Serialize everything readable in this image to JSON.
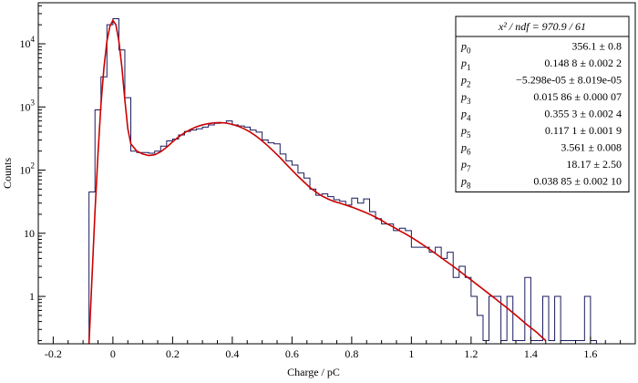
{
  "chart_data": {
    "type": "histogram-with-fit",
    "title": "",
    "xlabel": "Charge / pC",
    "ylabel": "Counts",
    "x_range": [
      -0.25,
      1.75
    ],
    "y_range_log10": [
      -0.75,
      4.65
    ],
    "y_scale": "log",
    "x_ticks": [
      {
        "v": -0.2,
        "label": "-0.2"
      },
      {
        "v": 0,
        "label": "0"
      },
      {
        "v": 0.2,
        "label": "0.2"
      },
      {
        "v": 0.4,
        "label": "0.4"
      },
      {
        "v": 0.6,
        "label": "0.6"
      },
      {
        "v": 0.8,
        "label": "0.8"
      },
      {
        "v": 1.0,
        "label": "1"
      },
      {
        "v": 1.2,
        "label": "1.2"
      },
      {
        "v": 1.4,
        "label": "1.4"
      },
      {
        "v": 1.6,
        "label": "1.6"
      }
    ],
    "y_ticks": [
      {
        "exp": 0,
        "base": "1",
        "sup": ""
      },
      {
        "exp": 1,
        "base": "10",
        "sup": ""
      },
      {
        "exp": 2,
        "base": "10",
        "sup": "2"
      },
      {
        "exp": 3,
        "base": "10",
        "sup": "3"
      },
      {
        "exp": 4,
        "base": "10",
        "sup": "4"
      }
    ],
    "histogram": {
      "color": "#1a1a5e",
      "bins": [
        [
          -0.08,
          -0.06,
          45
        ],
        [
          -0.06,
          -0.04,
          900
        ],
        [
          -0.04,
          -0.02,
          3000
        ],
        [
          -0.02,
          0.0,
          20000
        ],
        [
          0.0,
          0.02,
          25000
        ],
        [
          0.02,
          0.04,
          8000
        ],
        [
          0.04,
          0.06,
          1400
        ],
        [
          0.06,
          0.08,
          200
        ],
        [
          0.08,
          0.1,
          190
        ],
        [
          0.1,
          0.12,
          190
        ],
        [
          0.12,
          0.14,
          185
        ],
        [
          0.14,
          0.16,
          200
        ],
        [
          0.16,
          0.18,
          240
        ],
        [
          0.18,
          0.2,
          290
        ],
        [
          0.2,
          0.22,
          310
        ],
        [
          0.22,
          0.24,
          360
        ],
        [
          0.24,
          0.26,
          410
        ],
        [
          0.26,
          0.28,
          430
        ],
        [
          0.28,
          0.3,
          450
        ],
        [
          0.3,
          0.32,
          480
        ],
        [
          0.32,
          0.34,
          520
        ],
        [
          0.34,
          0.36,
          550
        ],
        [
          0.36,
          0.38,
          560
        ],
        [
          0.38,
          0.4,
          600
        ],
        [
          0.4,
          0.42,
          520
        ],
        [
          0.42,
          0.44,
          500
        ],
        [
          0.44,
          0.46,
          480
        ],
        [
          0.46,
          0.48,
          430
        ],
        [
          0.48,
          0.5,
          400
        ],
        [
          0.5,
          0.52,
          300
        ],
        [
          0.52,
          0.54,
          270
        ],
        [
          0.54,
          0.56,
          260
        ],
        [
          0.56,
          0.58,
          180
        ],
        [
          0.58,
          0.6,
          140
        ],
        [
          0.6,
          0.62,
          120
        ],
        [
          0.62,
          0.64,
          90
        ],
        [
          0.64,
          0.66,
          75
        ],
        [
          0.66,
          0.68,
          50
        ],
        [
          0.68,
          0.7,
          40
        ],
        [
          0.7,
          0.72,
          42
        ],
        [
          0.72,
          0.74,
          38
        ],
        [
          0.74,
          0.76,
          34
        ],
        [
          0.76,
          0.78,
          32
        ],
        [
          0.78,
          0.8,
          28
        ],
        [
          0.8,
          0.82,
          36
        ],
        [
          0.82,
          0.84,
          30
        ],
        [
          0.84,
          0.86,
          35
        ],
        [
          0.86,
          0.88,
          22
        ],
        [
          0.88,
          0.9,
          17
        ],
        [
          0.9,
          0.92,
          14
        ],
        [
          0.92,
          0.94,
          14
        ],
        [
          0.94,
          0.96,
          11
        ],
        [
          0.96,
          0.98,
          12
        ],
        [
          0.98,
          1.0,
          11
        ],
        [
          1.0,
          1.02,
          6
        ],
        [
          1.02,
          1.04,
          6
        ],
        [
          1.04,
          1.06,
          6
        ],
        [
          1.06,
          1.08,
          5
        ],
        [
          1.08,
          1.1,
          6
        ],
        [
          1.1,
          1.12,
          4
        ],
        [
          1.12,
          1.14,
          5
        ],
        [
          1.14,
          1.16,
          2
        ],
        [
          1.16,
          1.18,
          3
        ],
        [
          1.18,
          1.2,
          2
        ],
        [
          1.2,
          1.22,
          1
        ],
        [
          1.22,
          1.24,
          0.5
        ],
        [
          1.24,
          1.26,
          0.2
        ],
        [
          1.26,
          1.28,
          1
        ],
        [
          1.28,
          1.3,
          1
        ],
        [
          1.3,
          1.32,
          0.2
        ],
        [
          1.32,
          1.34,
          1
        ],
        [
          1.34,
          1.36,
          0.2
        ],
        [
          1.36,
          1.38,
          0.2
        ],
        [
          1.38,
          1.4,
          2
        ],
        [
          1.4,
          1.42,
          0.2
        ],
        [
          1.42,
          1.44,
          0.2
        ],
        [
          1.44,
          1.46,
          1
        ],
        [
          1.46,
          1.48,
          0.2
        ],
        [
          1.48,
          1.5,
          1
        ],
        [
          1.5,
          1.52,
          0.2
        ],
        [
          1.52,
          1.54,
          0.2
        ],
        [
          1.54,
          1.56,
          0.2
        ],
        [
          1.56,
          1.58,
          0.2
        ],
        [
          1.58,
          1.6,
          1
        ],
        [
          1.6,
          1.62,
          0.2
        ]
      ]
    },
    "fit": {
      "color": "#cc0000",
      "points": [
        [
          -0.08,
          0.18
        ],
        [
          -0.07,
          2
        ],
        [
          -0.06,
          22
        ],
        [
          -0.05,
          180
        ],
        [
          -0.04,
          1100
        ],
        [
          -0.03,
          4200
        ],
        [
          -0.02,
          11000
        ],
        [
          -0.01,
          19000
        ],
        [
          0.0,
          23500
        ],
        [
          0.01,
          20000
        ],
        [
          0.02,
          11000
        ],
        [
          0.03,
          4300
        ],
        [
          0.04,
          1300
        ],
        [
          0.05,
          450
        ],
        [
          0.06,
          260
        ],
        [
          0.08,
          200
        ],
        [
          0.1,
          180
        ],
        [
          0.12,
          170
        ],
        [
          0.14,
          175
        ],
        [
          0.16,
          195
        ],
        [
          0.18,
          230
        ],
        [
          0.2,
          280
        ],
        [
          0.22,
          335
        ],
        [
          0.24,
          390
        ],
        [
          0.26,
          440
        ],
        [
          0.28,
          485
        ],
        [
          0.3,
          520
        ],
        [
          0.32,
          545
        ],
        [
          0.34,
          560
        ],
        [
          0.36,
          565
        ],
        [
          0.38,
          555
        ],
        [
          0.4,
          530
        ],
        [
          0.42,
          495
        ],
        [
          0.44,
          450
        ],
        [
          0.46,
          400
        ],
        [
          0.48,
          345
        ],
        [
          0.5,
          290
        ],
        [
          0.52,
          240
        ],
        [
          0.54,
          195
        ],
        [
          0.56,
          158
        ],
        [
          0.58,
          125
        ],
        [
          0.6,
          100
        ],
        [
          0.62,
          80
        ],
        [
          0.64,
          65
        ],
        [
          0.66,
          53
        ],
        [
          0.68,
          45
        ],
        [
          0.7,
          39
        ],
        [
          0.72,
          35
        ],
        [
          0.74,
          32
        ],
        [
          0.76,
          30
        ],
        [
          0.78,
          28
        ],
        [
          0.8,
          26
        ],
        [
          0.82,
          24
        ],
        [
          0.84,
          22
        ],
        [
          0.86,
          20
        ],
        [
          0.88,
          18
        ],
        [
          0.9,
          16
        ],
        [
          0.92,
          14
        ],
        [
          0.94,
          12.5
        ],
        [
          0.96,
          11
        ],
        [
          0.98,
          9.8
        ],
        [
          1.0,
          8.6
        ],
        [
          1.02,
          7.5
        ],
        [
          1.04,
          6.5
        ],
        [
          1.06,
          5.6
        ],
        [
          1.08,
          4.8
        ],
        [
          1.1,
          4.1
        ],
        [
          1.12,
          3.5
        ],
        [
          1.14,
          3.0
        ],
        [
          1.16,
          2.55
        ],
        [
          1.18,
          2.15
        ],
        [
          1.2,
          1.82
        ],
        [
          1.22,
          1.54
        ],
        [
          1.24,
          1.3
        ],
        [
          1.26,
          1.1
        ],
        [
          1.28,
          0.93
        ],
        [
          1.3,
          0.78
        ],
        [
          1.32,
          0.66
        ],
        [
          1.34,
          0.55
        ],
        [
          1.36,
          0.46
        ],
        [
          1.38,
          0.38
        ],
        [
          1.4,
          0.32
        ],
        [
          1.42,
          0.27
        ],
        [
          1.44,
          0.22
        ],
        [
          1.45,
          0.2
        ]
      ]
    },
    "stats_box": {
      "header": "x² / ndf = 970.9 / 61",
      "rows": [
        {
          "name": "p",
          "sub": "0",
          "value": "356.1 ± 0.8"
        },
        {
          "name": "p",
          "sub": "1",
          "value": "0.148 8 ± 0.002 2"
        },
        {
          "name": "p",
          "sub": "2",
          "value": "−5.298e-05 ± 8.019e-05"
        },
        {
          "name": "p",
          "sub": "3",
          "value": "0.015 86 ± 0.000 07"
        },
        {
          "name": "p",
          "sub": "4",
          "value": "0.355 3 ± 0.002 4"
        },
        {
          "name": "p",
          "sub": "5",
          "value": "0.117 1 ± 0.001 9"
        },
        {
          "name": "p",
          "sub": "6",
          "value": "3.561 ± 0.008"
        },
        {
          "name": "p",
          "sub": "7",
          "value": "18.17 ± 2.50"
        },
        {
          "name": "p",
          "sub": "8",
          "value": "0.038 85 ± 0.002 10"
        }
      ]
    }
  }
}
